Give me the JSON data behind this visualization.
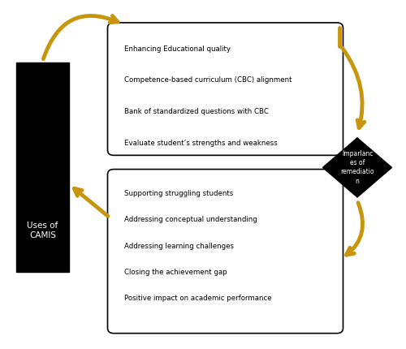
{
  "arrow_color": "#C8960C",
  "box_color": "#000000",
  "text_color": "#000000",
  "bg_color": "#ffffff",
  "camis_label": "Uses of\nCAMIS",
  "diamond_label": "Imparlanc\nes of\nremediatio\nn",
  "top_bullets": [
    "Enhancing Educational quality",
    "Competence-based curriculum (CBC) alignment",
    "Bank of standardized questions with CBC",
    "Evaluate student’s strengths and weakness"
  ],
  "bottom_bullets": [
    "Supporting struggling students",
    "Addressing conceptual understanding",
    "Addressing learning challenges",
    "Closing the achievement gap",
    "Positive impact on academic performance"
  ]
}
